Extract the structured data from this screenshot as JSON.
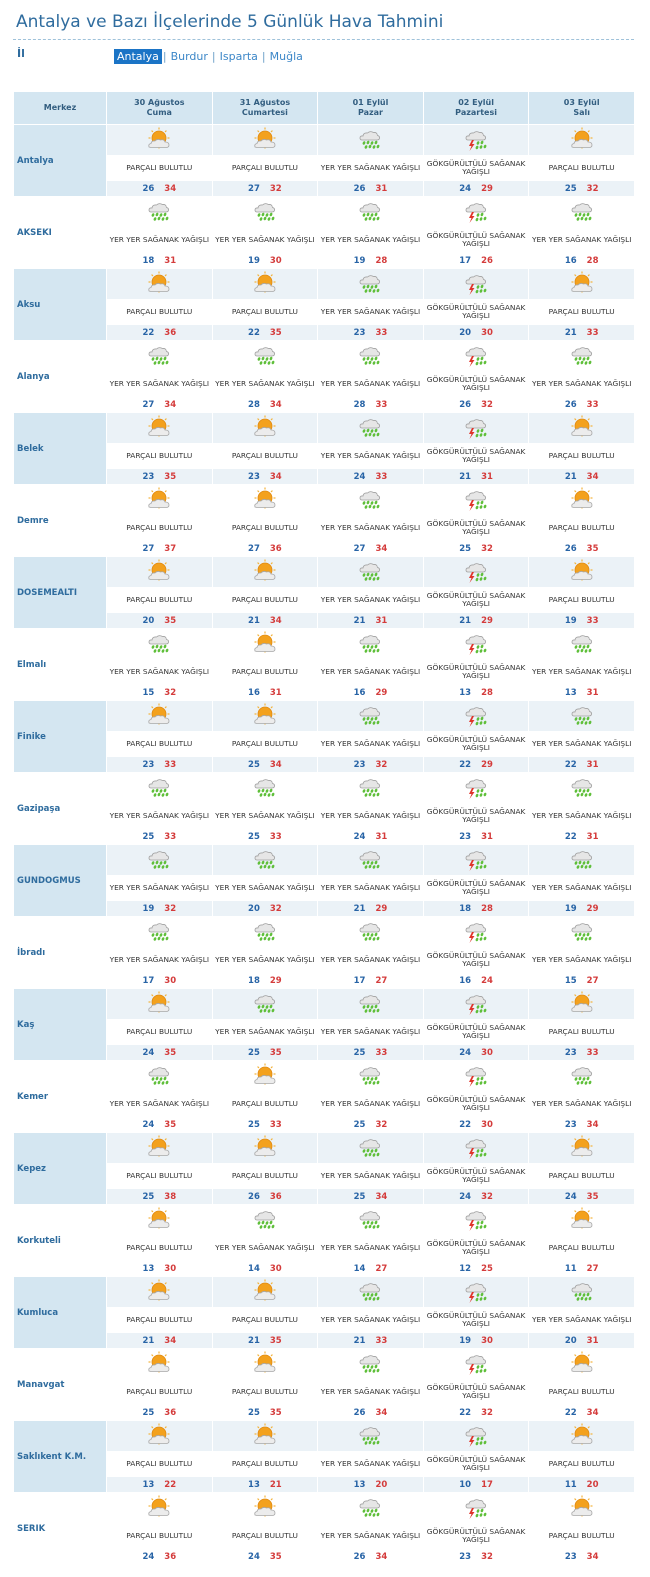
{
  "page": {
    "title": "Antalya ve Bazı İlçelerinde 5 Günlük Hava Tahmini",
    "il_label": "İl",
    "provinces": [
      "Antalya",
      "Burdur",
      "Isparta",
      "Muğla"
    ],
    "active_province": "Antalya",
    "separator": "|"
  },
  "table": {
    "header_district": "Merkez",
    "days": [
      {
        "date": "30 Ağustos",
        "weekday": "Cuma"
      },
      {
        "date": "31 Ağustos",
        "weekday": "Cumartesi"
      },
      {
        "date": "01 Eylül",
        "weekday": "Pazar"
      },
      {
        "date": "02 Eylül",
        "weekday": "Pazartesi"
      },
      {
        "date": "03 Eylül",
        "weekday": "Salı"
      }
    ]
  },
  "icons": {
    "partly_cloudy": "partly-cloudy-icon",
    "showers": "rain-showers-icon",
    "thunderstorm": "thunder-showers-icon"
  },
  "colors": {
    "header_bg": "#d4e6f1",
    "shade_bg": "#ebf2f7",
    "min_temp": "#2864a6",
    "max_temp": "#d43b3b"
  },
  "conditions": {
    "PB": {
      "icon": "partly_cloudy",
      "text": "PARÇALI BULUTLU"
    },
    "SG": {
      "icon": "showers",
      "text": "YER YER SAĞANAK YAĞIŞLI"
    },
    "GK": {
      "icon": "thunderstorm",
      "text": "GÖKGÜRÜLTÜLÜ SAĞANAK YAĞIŞLI"
    }
  },
  "districts": [
    {
      "name": "Antalya",
      "forecast": [
        [
          "PB",
          26,
          34
        ],
        [
          "PB",
          27,
          32
        ],
        [
          "SG",
          26,
          31
        ],
        [
          "GK",
          24,
          29
        ],
        [
          "PB",
          25,
          32
        ]
      ]
    },
    {
      "name": "AKSEKI",
      "forecast": [
        [
          "SG",
          18,
          31
        ],
        [
          "SG",
          19,
          30
        ],
        [
          "SG",
          19,
          28
        ],
        [
          "GK",
          17,
          26
        ],
        [
          "SG",
          16,
          28
        ]
      ]
    },
    {
      "name": "Aksu",
      "forecast": [
        [
          "PB",
          22,
          36
        ],
        [
          "PB",
          22,
          35
        ],
        [
          "SG",
          23,
          33
        ],
        [
          "GK",
          20,
          30
        ],
        [
          "PB",
          21,
          33
        ]
      ]
    },
    {
      "name": "Alanya",
      "forecast": [
        [
          "SG",
          27,
          34
        ],
        [
          "SG",
          28,
          34
        ],
        [
          "SG",
          28,
          33
        ],
        [
          "GK",
          26,
          32
        ],
        [
          "SG",
          26,
          33
        ]
      ]
    },
    {
      "name": "Belek",
      "forecast": [
        [
          "PB",
          23,
          35
        ],
        [
          "PB",
          23,
          34
        ],
        [
          "SG",
          24,
          33
        ],
        [
          "GK",
          21,
          31
        ],
        [
          "PB",
          21,
          34
        ]
      ]
    },
    {
      "name": "Demre",
      "forecast": [
        [
          "PB",
          27,
          37
        ],
        [
          "PB",
          27,
          36
        ],
        [
          "SG",
          27,
          34
        ],
        [
          "GK",
          25,
          32
        ],
        [
          "PB",
          26,
          35
        ]
      ]
    },
    {
      "name": "DOSEMEALTI",
      "forecast": [
        [
          "PB",
          20,
          35
        ],
        [
          "PB",
          21,
          34
        ],
        [
          "SG",
          21,
          31
        ],
        [
          "GK",
          21,
          29
        ],
        [
          "PB",
          19,
          33
        ]
      ]
    },
    {
      "name": "Elmalı",
      "forecast": [
        [
          "SG",
          15,
          32
        ],
        [
          "PB",
          16,
          31
        ],
        [
          "SG",
          16,
          29
        ],
        [
          "GK",
          13,
          28
        ],
        [
          "SG",
          13,
          31
        ]
      ]
    },
    {
      "name": "Finike",
      "forecast": [
        [
          "PB",
          23,
          33
        ],
        [
          "PB",
          25,
          34
        ],
        [
          "SG",
          23,
          32
        ],
        [
          "GK",
          22,
          29
        ],
        [
          "SG",
          22,
          31
        ]
      ]
    },
    {
      "name": "Gazipaşa",
      "forecast": [
        [
          "SG",
          25,
          33
        ],
        [
          "SG",
          25,
          33
        ],
        [
          "SG",
          24,
          31
        ],
        [
          "GK",
          23,
          31
        ],
        [
          "SG",
          22,
          31
        ]
      ]
    },
    {
      "name": "GUNDOGMUS",
      "forecast": [
        [
          "SG",
          19,
          32
        ],
        [
          "SG",
          20,
          32
        ],
        [
          "SG",
          21,
          29
        ],
        [
          "GK",
          18,
          28
        ],
        [
          "SG",
          19,
          29
        ]
      ]
    },
    {
      "name": "İbradı",
      "forecast": [
        [
          "SG",
          17,
          30
        ],
        [
          "SG",
          18,
          29
        ],
        [
          "SG",
          17,
          27
        ],
        [
          "GK",
          16,
          24
        ],
        [
          "SG",
          15,
          27
        ]
      ]
    },
    {
      "name": "Kaş",
      "forecast": [
        [
          "PB",
          24,
          35
        ],
        [
          "SG",
          25,
          35
        ],
        [
          "SG",
          25,
          33
        ],
        [
          "GK",
          24,
          30
        ],
        [
          "PB",
          23,
          33
        ]
      ]
    },
    {
      "name": "Kemer",
      "forecast": [
        [
          "SG",
          24,
          35
        ],
        [
          "PB",
          25,
          33
        ],
        [
          "SG",
          25,
          32
        ],
        [
          "GK",
          22,
          30
        ],
        [
          "SG",
          23,
          34
        ]
      ]
    },
    {
      "name": "Kepez",
      "forecast": [
        [
          "PB",
          25,
          38
        ],
        [
          "PB",
          26,
          36
        ],
        [
          "SG",
          25,
          34
        ],
        [
          "GK",
          24,
          32
        ],
        [
          "PB",
          24,
          35
        ]
      ]
    },
    {
      "name": "Korkuteli",
      "forecast": [
        [
          "PB",
          13,
          30
        ],
        [
          "SG",
          14,
          30
        ],
        [
          "SG",
          14,
          27
        ],
        [
          "GK",
          12,
          25
        ],
        [
          "PB",
          11,
          27
        ]
      ]
    },
    {
      "name": "Kumluca",
      "forecast": [
        [
          "PB",
          21,
          34
        ],
        [
          "PB",
          21,
          35
        ],
        [
          "SG",
          21,
          33
        ],
        [
          "GK",
          19,
          30
        ],
        [
          "SG",
          20,
          31
        ]
      ]
    },
    {
      "name": "Manavgat",
      "forecast": [
        [
          "PB",
          25,
          36
        ],
        [
          "PB",
          25,
          35
        ],
        [
          "SG",
          26,
          34
        ],
        [
          "GK",
          22,
          32
        ],
        [
          "PB",
          22,
          34
        ]
      ]
    },
    {
      "name": "Saklıkent K.M.",
      "forecast": [
        [
          "PB",
          13,
          22
        ],
        [
          "PB",
          13,
          21
        ],
        [
          "SG",
          13,
          20
        ],
        [
          "GK",
          10,
          17
        ],
        [
          "PB",
          11,
          20
        ]
      ]
    },
    {
      "name": "SERIK",
      "forecast": [
        [
          "PB",
          24,
          36
        ],
        [
          "PB",
          24,
          35
        ],
        [
          "SG",
          26,
          34
        ],
        [
          "GK",
          23,
          32
        ],
        [
          "PB",
          23,
          34
        ]
      ]
    }
  ]
}
